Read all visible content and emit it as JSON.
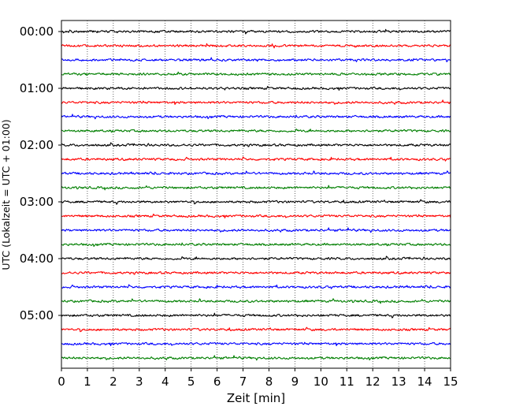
{
  "chart_data": {
    "type": "line",
    "title": "",
    "xlabel": "Zeit  [min]",
    "ylabel": "UTC (Lokalzeit = UTC + 01:00)",
    "xlim": [
      0,
      15
    ],
    "x_ticks": [
      "0",
      "1",
      "2",
      "3",
      "4",
      "5",
      "6",
      "7",
      "8",
      "9",
      "10",
      "11",
      "12",
      "13",
      "14",
      "15"
    ],
    "y_ticks": [
      "00:00",
      "01:00",
      "02:00",
      "03:00",
      "04:00",
      "05:00"
    ],
    "grid": "vertical dotted",
    "trace_interval_minutes": 15,
    "trace_colors": [
      "#000000",
      "#ff0000",
      "#0000ff",
      "#007f00"
    ],
    "traces": [
      {
        "start": "00:00",
        "color": "#000000"
      },
      {
        "start": "00:15",
        "color": "#ff0000"
      },
      {
        "start": "00:30",
        "color": "#0000ff"
      },
      {
        "start": "00:45",
        "color": "#007f00"
      },
      {
        "start": "01:00",
        "color": "#000000"
      },
      {
        "start": "01:15",
        "color": "#ff0000"
      },
      {
        "start": "01:30",
        "color": "#0000ff"
      },
      {
        "start": "01:45",
        "color": "#007f00"
      },
      {
        "start": "02:00",
        "color": "#000000"
      },
      {
        "start": "02:15",
        "color": "#ff0000"
      },
      {
        "start": "02:30",
        "color": "#0000ff"
      },
      {
        "start": "02:45",
        "color": "#007f00"
      },
      {
        "start": "03:00",
        "color": "#000000"
      },
      {
        "start": "03:15",
        "color": "#ff0000"
      },
      {
        "start": "03:30",
        "color": "#0000ff"
      },
      {
        "start": "03:45",
        "color": "#007f00"
      },
      {
        "start": "04:00",
        "color": "#000000"
      },
      {
        "start": "04:15",
        "color": "#ff0000"
      },
      {
        "start": "04:30",
        "color": "#0000ff"
      },
      {
        "start": "04:45",
        "color": "#007f00"
      },
      {
        "start": "05:00",
        "color": "#000000"
      },
      {
        "start": "05:15",
        "color": "#ff0000"
      },
      {
        "start": "05:30",
        "color": "#0000ff"
      },
      {
        "start": "05:45",
        "color": "#007f00"
      }
    ]
  }
}
